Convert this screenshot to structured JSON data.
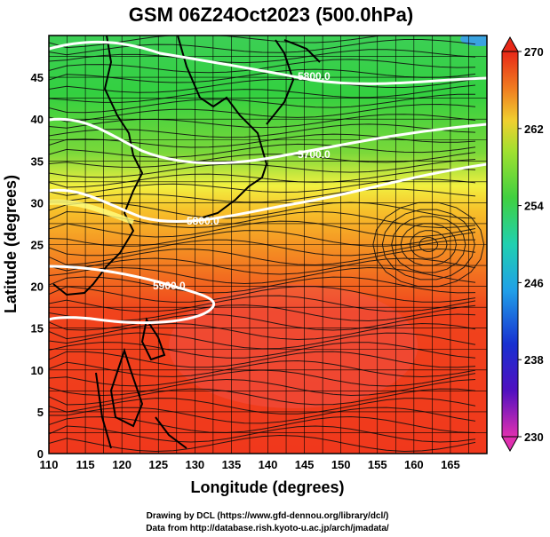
{
  "title": "GSM 06Z24Oct2023 (500.0hPa)",
  "axes": {
    "xlabel": "Longitude (degrees)",
    "ylabel": "Latitude  (degrees)",
    "xticks": [
      "110",
      "115",
      "120",
      "125",
      "130",
      "135",
      "140",
      "145",
      "150",
      "155",
      "160",
      "165"
    ],
    "yticks": [
      "0",
      "5",
      "10",
      "15",
      "20",
      "25",
      "30",
      "35",
      "40",
      "45"
    ],
    "xlim": [
      110,
      170
    ],
    "ylim": [
      0,
      50
    ]
  },
  "colorbar": {
    "labels": [
      "270",
      "262",
      "254",
      "246",
      "238",
      "230"
    ],
    "range": [
      230,
      270
    ]
  },
  "contour_labels": [
    "5800.0",
    "5700.0",
    "5800.0",
    "5900.0"
  ],
  "footer": {
    "line1": "Drawing by DCL (https://www.gfd-dennou.org/library/dcl/)",
    "line2": "Data from http://database.rish.kyoto-u.ac.jp/arch/jmadata/"
  },
  "colors": {
    "warm": "#f23a1a",
    "mid": "#f5a020",
    "cool": "#2fcf3a",
    "cold": "#3aa3e0"
  }
}
